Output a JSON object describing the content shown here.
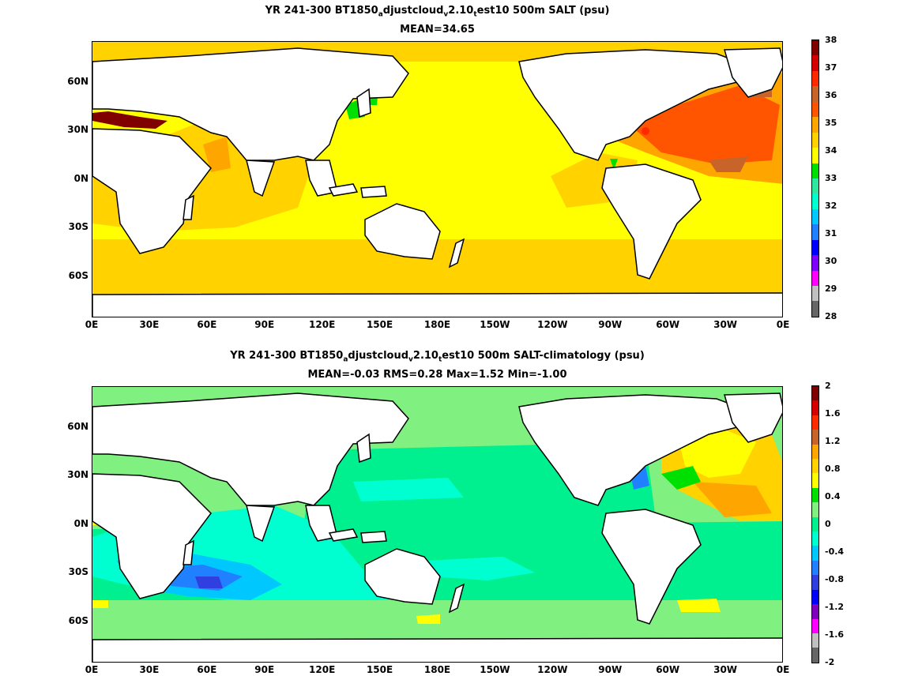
{
  "panels": [
    {
      "title_pre": "YR 241-300 BT1850",
      "title_sub1": "a",
      "title_mid": "djustcloud",
      "title_sub2": "v",
      "title_mid2": "2.10",
      "title_sub3": "t",
      "title_post": "est10 500m SALT (psu)",
      "subtitle": "MEAN=34.65",
      "colorbar": {
        "ticks": [
          "38",
          "37",
          "36",
          "35",
          "34",
          "33",
          "32",
          "31",
          "30",
          "29",
          "28"
        ],
        "colors": [
          "#800000",
          "#d40000",
          "#ff2a00",
          "#c8642a",
          "#ff5500",
          "#ffa500",
          "#ffd200",
          "#ffff00",
          "#00e000",
          "#2ee8a0",
          "#00ffd0",
          "#00c8ff",
          "#2080ff",
          "#0000ff",
          "#8000ff",
          "#ff00ff",
          "#c0c0c0",
          "#666666"
        ]
      }
    },
    {
      "title_pre": "YR 241-300 BT1850",
      "title_sub1": "a",
      "title_mid": "djustcloud",
      "title_sub2": "v",
      "title_mid2": "2.10",
      "title_sub3": "t",
      "title_post": "est10 500m SALT-climatology (psu)",
      "subtitle": "MEAN=-0.03   RMS=0.28   Max=1.52   Min=-1.00",
      "colorbar": {
        "ticks": [
          "2",
          "1.6",
          "1.2",
          "0.8",
          "0.4",
          "0",
          "-0.4",
          "-0.8",
          "-1.2",
          "-1.6",
          "-2"
        ],
        "colors": [
          "#800000",
          "#d40000",
          "#ff2a00",
          "#c8642a",
          "#ffa500",
          "#ffd200",
          "#ffff00",
          "#00e000",
          "#80f080",
          "#00f090",
          "#00ffd0",
          "#00c8ff",
          "#2080ff",
          "#3040e0",
          "#0000ff",
          "#8000c0",
          "#ff00ff",
          "#c0c0c0",
          "#666666"
        ]
      }
    }
  ],
  "axes": {
    "x_ticks": [
      "0E",
      "30E",
      "60E",
      "90E",
      "120E",
      "150E",
      "180E",
      "150W",
      "120W",
      "90W",
      "60W",
      "30W",
      "0E"
    ],
    "y_ticks": [
      "60N",
      "30N",
      "0N",
      "30S",
      "60S"
    ]
  }
}
